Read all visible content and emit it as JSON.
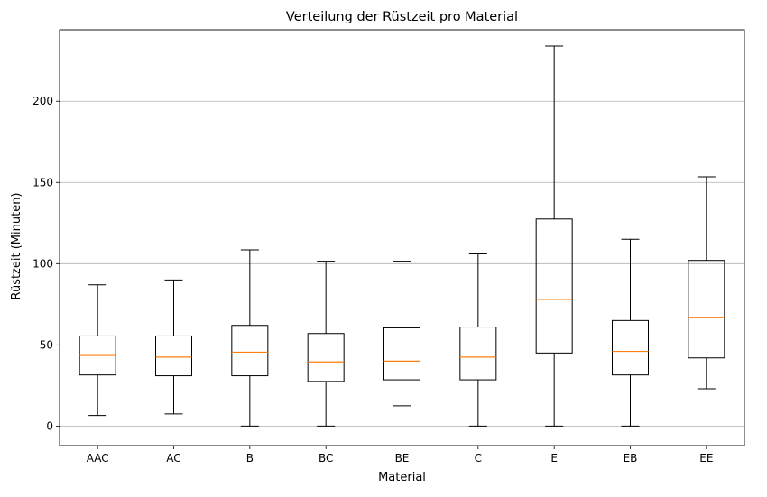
{
  "chart_data": {
    "type": "boxplot",
    "title": "Verteilung der Rüstzeit pro Material",
    "xlabel": "Material",
    "ylabel": "Rüstzeit (Minuten)",
    "categories": [
      "AAC",
      "AC",
      "B",
      "BC",
      "BE",
      "C",
      "E",
      "EB",
      "EE"
    ],
    "boxes": [
      {
        "category": "AAC",
        "whisker_low": 6.5,
        "q1": 31.5,
        "median": 43.5,
        "q3": 55.5,
        "whisker_high": 87.0
      },
      {
        "category": "AC",
        "whisker_low": 7.5,
        "q1": 31.0,
        "median": 42.5,
        "q3": 55.5,
        "whisker_high": 90.0
      },
      {
        "category": "B",
        "whisker_low": 0.0,
        "q1": 31.0,
        "median": 45.5,
        "q3": 62.0,
        "whisker_high": 108.5
      },
      {
        "category": "BC",
        "whisker_low": 0.0,
        "q1": 27.5,
        "median": 39.5,
        "q3": 57.0,
        "whisker_high": 101.5
      },
      {
        "category": "BE",
        "whisker_low": 12.5,
        "q1": 28.5,
        "median": 40.0,
        "q3": 60.5,
        "whisker_high": 101.5
      },
      {
        "category": "C",
        "whisker_low": 0.0,
        "q1": 28.5,
        "median": 42.5,
        "q3": 61.0,
        "whisker_high": 106.0
      },
      {
        "category": "E",
        "whisker_low": 0.0,
        "q1": 45.0,
        "median": 78.0,
        "q3": 127.5,
        "whisker_high": 234.0
      },
      {
        "category": "EB",
        "whisker_low": 0.0,
        "q1": 31.5,
        "median": 46.0,
        "q3": 65.0,
        "whisker_high": 115.0
      },
      {
        "category": "EE",
        "whisker_low": 23.0,
        "q1": 42.0,
        "median": 67.0,
        "q3": 102.0,
        "whisker_high": 153.5
      }
    ],
    "yticks": [
      0,
      50,
      100,
      150,
      200
    ],
    "ylim": [
      -12,
      244
    ],
    "grid": "horizontal",
    "colors": {
      "box": "#000000",
      "median": "#ff7f0e",
      "grid": "#b0b0b0"
    }
  }
}
